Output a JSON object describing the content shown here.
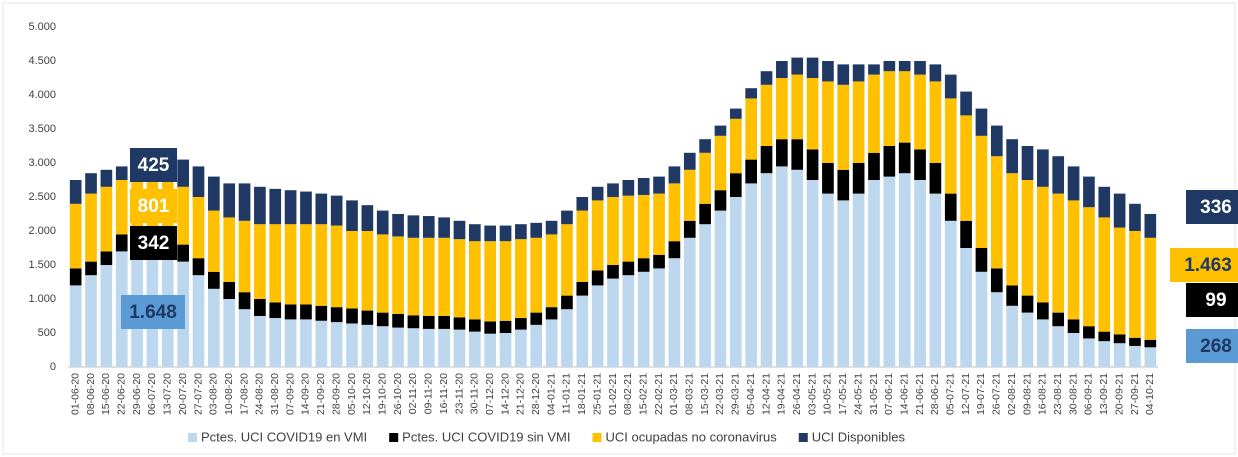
{
  "chart_data": {
    "type": "stacked-bar",
    "categories": [
      "01-06-20",
      "08-06-20",
      "15-06-20",
      "22-06-20",
      "29-06-20",
      "06-07-20",
      "13-07-20",
      "20-07-20",
      "27-07-20",
      "03-08-20",
      "10-08-20",
      "17-08-20",
      "24-08-20",
      "31-08-20",
      "07-09-20",
      "14-09-20",
      "21-09-20",
      "28-09-20",
      "05-10-20",
      "12-10-20",
      "19-10-20",
      "26-10-20",
      "02-11-20",
      "09-11-20",
      "16-11-20",
      "23-11-20",
      "30-11-20",
      "07-12-20",
      "14-12-20",
      "21-12-20",
      "28-12-20",
      "04-01-21",
      "11-01-21",
      "18-01-21",
      "25-01-21",
      "01-02-21",
      "08-02-21",
      "15-02-21",
      "22-02-21",
      "01-03-21",
      "08-03-21",
      "15-03-21",
      "22-03-21",
      "29-03-21",
      "05-04-21",
      "12-04-21",
      "19-04-21",
      "26-04-21",
      "03-05-21",
      "10-05-21",
      "17-05-21",
      "24-05-21",
      "31-05-21",
      "07-06-21",
      "14-06-21",
      "21-06-21",
      "28-06-21",
      "05-07-21",
      "12-07-21",
      "19-07-21",
      "26-07-21",
      "02-08-21",
      "09-08-21",
      "16-08-21",
      "23-08-21",
      "30-08-21",
      "06-09-21",
      "13-09-21",
      "20-09-21",
      "27-09-21",
      "04-10-21"
    ],
    "series": [
      {
        "name": "Pctes. UCI COVID19 en VMI",
        "color": "#bdd7ee",
        "values": [
          1200,
          1350,
          1500,
          1700,
          1750,
          1700,
          1650,
          1550,
          1350,
          1150,
          1000,
          850,
          750,
          720,
          700,
          700,
          680,
          660,
          640,
          620,
          600,
          580,
          570,
          560,
          560,
          550,
          520,
          490,
          500,
          550,
          620,
          700,
          850,
          1050,
          1200,
          1300,
          1350,
          1400,
          1450,
          1600,
          1900,
          2100,
          2300,
          2500,
          2700,
          2850,
          2950,
          2900,
          2750,
          2550,
          2450,
          2550,
          2750,
          2800,
          2850,
          2750,
          2550,
          2150,
          1750,
          1400,
          1100,
          900,
          800,
          700,
          600,
          500,
          420,
          380,
          350,
          310,
          290
        ]
      },
      {
        "name": "Pctes. UCI COVID19 sin VMI",
        "color": "#000000",
        "values": [
          250,
          200,
          200,
          250,
          300,
          350,
          350,
          250,
          250,
          250,
          250,
          250,
          250,
          230,
          220,
          220,
          220,
          220,
          220,
          210,
          200,
          200,
          190,
          190,
          190,
          180,
          180,
          180,
          180,
          170,
          180,
          180,
          200,
          200,
          220,
          200,
          200,
          200,
          200,
          250,
          250,
          300,
          300,
          350,
          350,
          400,
          400,
          450,
          450,
          450,
          450,
          450,
          400,
          450,
          450,
          450,
          450,
          400,
          400,
          350,
          350,
          300,
          250,
          250,
          200,
          200,
          180,
          140,
          130,
          120,
          110
        ]
      },
      {
        "name": "UCI ocupadas no coronavirus",
        "color": "#ffc000",
        "values": [
          950,
          1000,
          950,
          800,
          700,
          750,
          800,
          850,
          900,
          900,
          950,
          1050,
          1100,
          1150,
          1180,
          1180,
          1200,
          1200,
          1140,
          1170,
          1150,
          1140,
          1140,
          1150,
          1150,
          1150,
          1150,
          1180,
          1170,
          1160,
          1100,
          1070,
          1050,
          1050,
          1030,
          1000,
          970,
          930,
          900,
          850,
          750,
          750,
          800,
          800,
          900,
          900,
          900,
          950,
          1050,
          1200,
          1250,
          1200,
          1150,
          1100,
          1050,
          1100,
          1200,
          1400,
          1550,
          1650,
          1650,
          1650,
          1700,
          1700,
          1750,
          1750,
          1750,
          1680,
          1570,
          1570,
          1500
        ]
      },
      {
        "name": "UCI Disponibles",
        "color": "#1f3864",
        "values": [
          350,
          300,
          250,
          200,
          250,
          300,
          350,
          400,
          450,
          500,
          500,
          550,
          550,
          520,
          500,
          480,
          450,
          440,
          450,
          380,
          350,
          330,
          330,
          320,
          300,
          270,
          250,
          230,
          230,
          220,
          220,
          200,
          200,
          200,
          200,
          200,
          230,
          250,
          250,
          250,
          250,
          200,
          150,
          150,
          150,
          200,
          250,
          250,
          300,
          300,
          300,
          250,
          150,
          150,
          150,
          200,
          250,
          350,
          350,
          400,
          450,
          500,
          500,
          550,
          550,
          500,
          450,
          450,
          500,
          400,
          350
        ]
      }
    ],
    "ylim": [
      0,
      5000
    ],
    "yticks": [
      0,
      500,
      {
        "value": 1000,
        "label": "1.000"
      },
      {
        "value": 1500,
        "label": "1.500"
      },
      {
        "value": 2000,
        "label": "2.000"
      },
      {
        "value": 2500,
        "label": "2.500"
      },
      {
        "value": 3000,
        "label": "3.000"
      },
      {
        "value": 3500,
        "label": "3.500"
      },
      {
        "value": 4000,
        "label": "4.000"
      },
      {
        "value": 4500,
        "label": "4.500"
      },
      {
        "value": 5000,
        "label": "5.000"
      }
    ],
    "annotations_left": [
      {
        "value": 1648,
        "label": "1.648",
        "box_color": "#5b9bd5",
        "text_color": "#1f3864"
      },
      {
        "value": 342,
        "label": "342",
        "box_color": "#000000",
        "text_color": "#ffffff"
      },
      {
        "value": 801,
        "label": "801",
        "box_color": "#ffc000",
        "text_color": "#ffffff"
      },
      {
        "value": 425,
        "label": "425",
        "box_color": "#1f3864",
        "text_color": "#ffffff"
      }
    ],
    "annotations_right": [
      {
        "value": 268,
        "label": "268",
        "box_color": "#5b9bd5",
        "text_color": "#1f3864"
      },
      {
        "value": 99,
        "label": "99",
        "box_color": "#000000",
        "text_color": "#ffffff"
      },
      {
        "value": 1463,
        "label": "1.463",
        "box_color": "#ffc000",
        "text_color": "#1f3864"
      },
      {
        "value": 336,
        "label": "336",
        "box_color": "#1f3864",
        "text_color": "#ffffff"
      }
    ],
    "grid": false
  }
}
